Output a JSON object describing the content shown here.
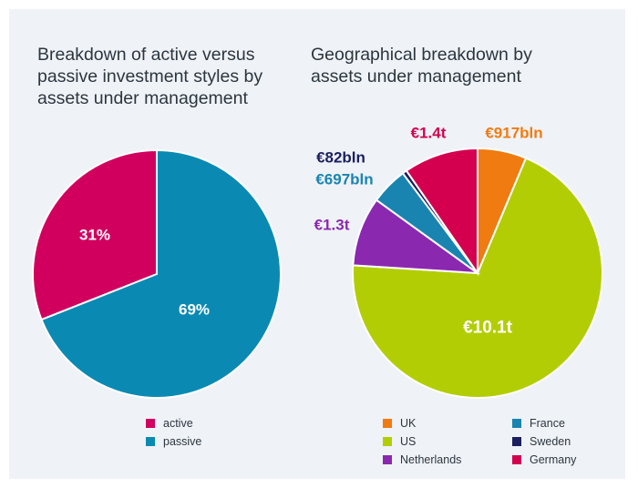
{
  "colors": {
    "active": "#d1005f",
    "passive": "#0a8ab3",
    "uk": "#f07b10",
    "us": "#b3cd05",
    "netherlands": "#8b28b0",
    "france": "#1a84b0",
    "sweden": "#1b1f5e",
    "germany": "#d4004f"
  },
  "chart_data": [
    {
      "type": "pie",
      "title": "Breakdown of active versus passive investment styles by assets under management",
      "slices": [
        {
          "name": "active",
          "value": 31,
          "label": "31%",
          "color": "#d1005f"
        },
        {
          "name": "passive",
          "value": 69,
          "label": "69%",
          "color": "#0a8ab3"
        }
      ],
      "legend": [
        "active",
        "passive"
      ],
      "legend_position": "bottom"
    },
    {
      "type": "pie",
      "title": "Geographical breakdown by assets under management",
      "slices": [
        {
          "name": "UK",
          "value": 917,
          "label": "€917bln",
          "color": "#f07b10"
        },
        {
          "name": "US",
          "value": 10100,
          "label": "€10.1t",
          "color": "#b3cd05"
        },
        {
          "name": "Netherlands",
          "value": 1300,
          "label": "€1.3t",
          "color": "#8b28b0"
        },
        {
          "name": "France",
          "value": 697,
          "label": "€697bln",
          "color": "#1a84b0"
        },
        {
          "name": "Sweden",
          "value": 82,
          "label": "€82bln",
          "color": "#1b1f5e"
        },
        {
          "name": "Germany",
          "value": 1400,
          "label": "€1.4t",
          "color": "#d4004f"
        }
      ],
      "legend": [
        "UK",
        "France",
        "US",
        "Sweden",
        "Netherlands",
        "Germany"
      ],
      "legend_position": "bottom"
    }
  ]
}
